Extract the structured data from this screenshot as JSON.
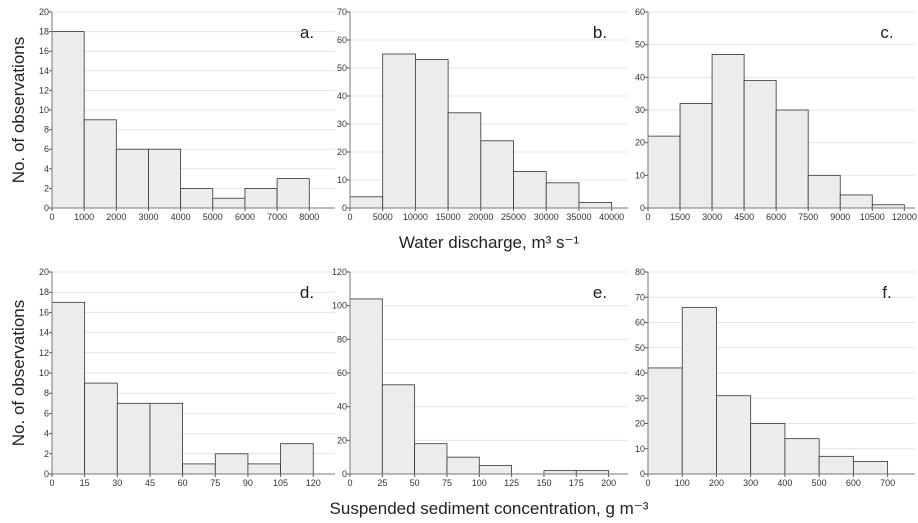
{
  "chart_data": [
    {
      "type": "histogram",
      "panel_label": "a.",
      "y_label": "No. of observations",
      "bins": [
        0,
        1000,
        2000,
        3000,
        4000,
        5000,
        6000,
        7000,
        8000
      ],
      "values": [
        18,
        9,
        6,
        6,
        2,
        1,
        2,
        3
      ],
      "xlim": [
        0,
        8800
      ],
      "ylim": [
        0,
        20
      ],
      "xticks": [
        0,
        1000,
        2000,
        3000,
        4000,
        5000,
        6000,
        7000,
        8000
      ],
      "yticks": [
        0,
        2,
        4,
        6,
        8,
        10,
        12,
        14,
        16,
        18,
        20
      ],
      "color": "#ececec",
      "grid": true
    },
    {
      "type": "histogram",
      "panel_label": "b.",
      "x_label": "Water discharge, m³ s⁻¹",
      "bins": [
        0,
        5000,
        10000,
        15000,
        20000,
        25000,
        30000,
        35000,
        40000
      ],
      "values": [
        4,
        55,
        53,
        34,
        24,
        13,
        9,
        2
      ],
      "xlim": [
        0,
        42500
      ],
      "ylim": [
        0,
        70
      ],
      "xticks": [
        0,
        5000,
        10000,
        15000,
        20000,
        25000,
        30000,
        35000,
        40000
      ],
      "yticks": [
        0,
        10,
        20,
        30,
        40,
        50,
        60,
        70
      ],
      "color": "#ececec",
      "grid": true
    },
    {
      "type": "histogram",
      "panel_label": "c.",
      "bins": [
        0,
        1500,
        3000,
        4500,
        6000,
        7500,
        9000,
        10500,
        12000
      ],
      "values": [
        22,
        32,
        47,
        39,
        30,
        10,
        4,
        1
      ],
      "xlim": [
        0,
        12500
      ],
      "ylim": [
        0,
        60
      ],
      "xticks": [
        0,
        1500,
        3000,
        4500,
        6000,
        7500,
        9000,
        10500,
        12000
      ],
      "yticks": [
        0,
        10,
        20,
        30,
        40,
        50,
        60
      ],
      "color": "#ececec",
      "grid": true
    },
    {
      "type": "histogram",
      "panel_label": "d.",
      "y_label": "No. of observations",
      "bins": [
        0,
        15,
        30,
        45,
        60,
        75,
        90,
        105,
        120
      ],
      "values": [
        17,
        9,
        7,
        7,
        1,
        2,
        1,
        3
      ],
      "xlim": [
        0,
        130
      ],
      "ylim": [
        0,
        20
      ],
      "xticks": [
        0,
        15,
        30,
        45,
        60,
        75,
        90,
        105,
        120
      ],
      "yticks": [
        0,
        2,
        4,
        6,
        8,
        10,
        12,
        14,
        16,
        18,
        20
      ],
      "color": "#ececec",
      "grid": true
    },
    {
      "type": "histogram",
      "panel_label": "e.",
      "x_label": "Suspended sediment concentration, g m⁻³",
      "bins": [
        0,
        25,
        50,
        75,
        100,
        125,
        150,
        175,
        200
      ],
      "values": [
        104,
        53,
        18,
        10,
        5,
        0,
        2,
        2
      ],
      "xlim": [
        0,
        215
      ],
      "ylim": [
        0,
        120
      ],
      "xticks": [
        0,
        25,
        50,
        75,
        100,
        125,
        150,
        175,
        200
      ],
      "yticks": [
        0,
        20,
        40,
        60,
        80,
        100,
        120
      ],
      "color": "#ececec",
      "grid": true
    },
    {
      "type": "histogram",
      "panel_label": "f.",
      "bins": [
        0,
        100,
        200,
        300,
        400,
        500,
        600,
        700
      ],
      "values": [
        42,
        66,
        31,
        20,
        14,
        7,
        5
      ],
      "xlim": [
        0,
        780
      ],
      "ylim": [
        0,
        80
      ],
      "xticks": [
        0,
        100,
        200,
        300,
        400,
        500,
        600,
        700
      ],
      "yticks": [
        0,
        10,
        20,
        30,
        40,
        50,
        60,
        70,
        80
      ],
      "color": "#ececec",
      "grid": true
    }
  ]
}
